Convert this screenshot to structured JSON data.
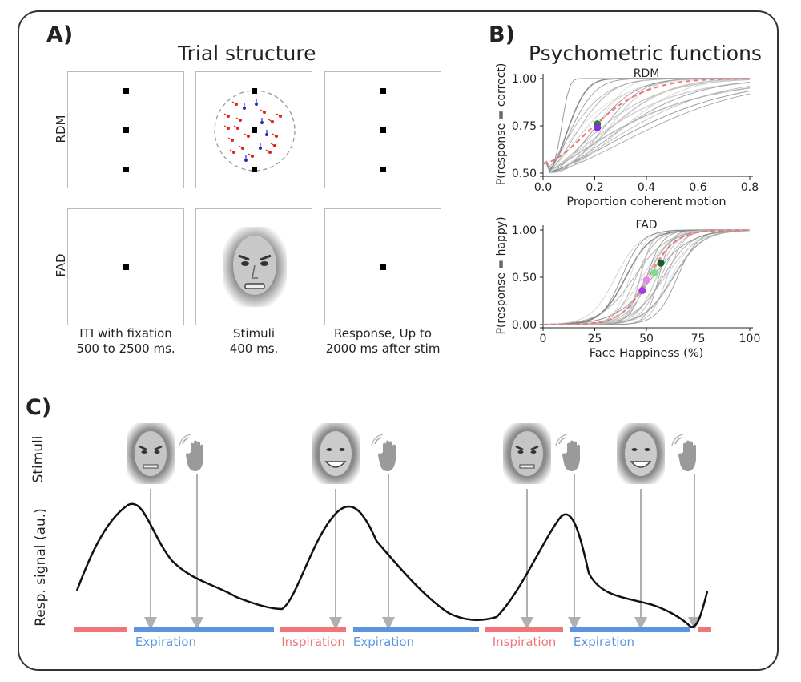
{
  "panel_a": {
    "letter": "A)",
    "title": "Trial structure",
    "row_labels": [
      "RDM",
      "FAD"
    ],
    "captions": [
      {
        "line1": "ITI with fixation",
        "line2": "500 to 2500 ms."
      },
      {
        "line1": "Stimuli",
        "line2": "400 ms."
      },
      {
        "line1": "Response, Up to",
        "line2": "2000 ms after stim"
      }
    ]
  },
  "panel_b": {
    "letter": "B)",
    "title": "Psychometric functions"
  },
  "panel_c": {
    "letter": "C)",
    "ylabel_top": "Stimuli",
    "ylabel_bottom": "Resp. signal (au.)",
    "phase_labels": [
      "Expiration",
      "Inspiration",
      "Expiration",
      "Inspiration",
      "Expiration"
    ],
    "colors": {
      "inspiration": "#f07678",
      "expiration": "#5b95e0"
    }
  },
  "chart_data": [
    {
      "type": "line",
      "title": "RDM",
      "xlabel": "Proportion coherent motion",
      "ylabel": "P(response = correct)",
      "xlim": [
        0.0,
        0.8
      ],
      "ylim": [
        0.5,
        1.0
      ],
      "xticks": [
        "0.0",
        "0.2",
        "0.4",
        "0.6",
        "0.8"
      ],
      "yticks": [
        "0.50",
        "0.75",
        "1.00"
      ],
      "mean_curve_color": "#f07678",
      "markers": [
        {
          "x": 0.21,
          "y": 0.76,
          "color": "#2e7d32"
        },
        {
          "x": 0.21,
          "y": 0.74,
          "color": "#8a2be2"
        }
      ]
    },
    {
      "type": "line",
      "title": "FAD",
      "xlabel": "Face Happiness (%)",
      "ylabel": "P(response = happy)",
      "xlim": [
        0,
        100
      ],
      "ylim": [
        0.0,
        1.0
      ],
      "xticks": [
        "0",
        "25",
        "50",
        "75",
        "100"
      ],
      "yticks": [
        "0.00",
        "0.50",
        "1.00"
      ],
      "mean_curve_color": "#f07678",
      "markers": [
        {
          "x": 57,
          "y": 0.65,
          "color": "#1b5e20"
        },
        {
          "x": 54,
          "y": 0.55,
          "color": "#7fdc8a"
        },
        {
          "x": 50,
          "y": 0.47,
          "color": "#e58ae5"
        },
        {
          "x": 48,
          "y": 0.36,
          "color": "#a53be3"
        }
      ]
    }
  ]
}
